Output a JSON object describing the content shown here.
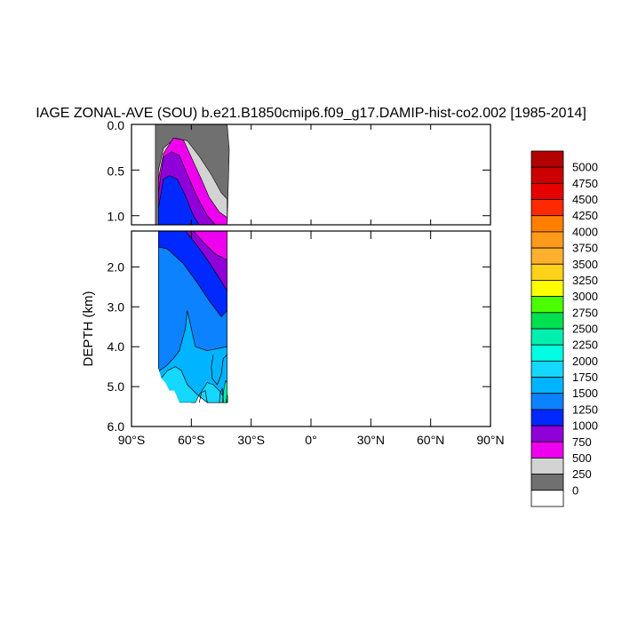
{
  "chart_data": {
    "type": "heatmap",
    "title": "IAGE ZONAL-AVE (SOU) b.e21.B1850cmip6.f09_g17.DAMIP-hist-co2.002 [1985-2014]",
    "ylabel": "DEPTH (km)",
    "xlabel": "",
    "x_ticks": [
      "90°S",
      "60°S",
      "30°S",
      "0°",
      "30°N",
      "60°N",
      "90°N"
    ],
    "x_tick_values": [
      -90,
      -60,
      -30,
      0,
      30,
      60,
      90
    ],
    "xlim": [
      -90,
      90
    ],
    "upper_panel": {
      "ylim": [
        0,
        1.1
      ],
      "y_ticks": [
        "0.0",
        "0.5",
        "1.0"
      ],
      "y_tick_values": [
        0,
        0.5,
        1.0
      ]
    },
    "lower_panel": {
      "ylim": [
        1.1,
        6.0
      ],
      "y_ticks": [
        "2.0",
        "3.0",
        "4.0",
        "5.0",
        "6.0"
      ],
      "y_tick_values": [
        2,
        3,
        4,
        5,
        6
      ]
    },
    "colorbar": {
      "labels": [
        "5000",
        "4750",
        "4500",
        "4250",
        "4000",
        "3750",
        "3500",
        "3250",
        "3000",
        "2750",
        "2500",
        "2250",
        "2000",
        "1750",
        "1500",
        "1250",
        "1000",
        "750",
        "500",
        "250",
        "0"
      ],
      "colors": [
        "#b30000",
        "#cc0000",
        "#e60000",
        "#ff2a00",
        "#ff7f00",
        "#ff9a1a",
        "#ffb02e",
        "#ffd21a",
        "#ffff00",
        "#4cff00",
        "#00e050",
        "#00f0b0",
        "#00ffe0",
        "#14d8ff",
        "#00b4ff",
        "#0c82ff",
        "#0028ff",
        "#9000d8",
        "#ee00ee",
        "#d3d3d3",
        "#707070",
        "#ffffff"
      ]
    },
    "fields": {
      "upper": [
        {
          "value": 250,
          "color": "#707070",
          "points": [
            [
              -78,
              0
            ],
            [
              -42,
              0
            ],
            [
              -41,
              0.28
            ],
            [
              -42,
              1.1
            ],
            [
              -78,
              1.1
            ]
          ]
        },
        {
          "value": 500,
          "color": "#d3d3d3",
          "points": [
            [
              -76.5,
              0.5
            ],
            [
              -74,
              0.26
            ],
            [
              -68,
              0.15
            ],
            [
              -62,
              0.18
            ],
            [
              -56,
              0.35
            ],
            [
              -50,
              0.55
            ],
            [
              -45,
              0.75
            ],
            [
              -42,
              0.82
            ],
            [
              -42,
              1.1
            ],
            [
              -76.5,
              1.1
            ]
          ]
        },
        {
          "value": 750,
          "color": "#ee00ee",
          "points": [
            [
              -76.5,
              0.6
            ],
            [
              -74,
              0.32
            ],
            [
              -69,
              0.15
            ],
            [
              -64,
              0.17
            ],
            [
              -60,
              0.36
            ],
            [
              -55,
              0.6
            ],
            [
              -51,
              0.8
            ],
            [
              -46,
              0.96
            ],
            [
              -42,
              1.02
            ],
            [
              -42,
              1.1
            ],
            [
              -76.5,
              1.1
            ]
          ]
        },
        {
          "value": 1000,
          "color": "#9000d8",
          "points": [
            [
              -76.5,
              0.75
            ],
            [
              -74,
              0.36
            ],
            [
              -70,
              0.3
            ],
            [
              -66,
              0.34
            ],
            [
              -62,
              0.55
            ],
            [
              -57,
              0.8
            ],
            [
              -52,
              1.0
            ],
            [
              -48,
              1.1
            ],
            [
              -76.5,
              1.1
            ]
          ]
        },
        {
          "value": 1250,
          "color": "#0028ff",
          "points": [
            [
              -76.5,
              0.92
            ],
            [
              -74,
              0.6
            ],
            [
              -71,
              0.56
            ],
            [
              -67,
              0.6
            ],
            [
              -63,
              0.78
            ],
            [
              -59,
              1.0
            ],
            [
              -56,
              1.1
            ],
            [
              -76.5,
              1.1
            ]
          ]
        }
      ],
      "lower": [
        {
          "value": 750,
          "color": "#ee00ee",
          "points": [
            [
              -59,
              1.1
            ],
            [
              -42,
              1.1
            ],
            [
              -42,
              1.83
            ],
            [
              -48,
              1.68
            ],
            [
              -54,
              1.38
            ]
          ]
        },
        {
          "value": 1000,
          "color": "#9000d8",
          "points": [
            [
              -63,
              1.1
            ],
            [
              -59,
              1.1
            ],
            [
              -54,
              1.38
            ],
            [
              -48,
              1.68
            ],
            [
              -42,
              1.83
            ],
            [
              -42,
              2.6
            ],
            [
              -47,
              2.2
            ],
            [
              -52,
              1.82
            ],
            [
              -58,
              1.4
            ]
          ]
        },
        {
          "value": 1250,
          "color": "#0028ff",
          "points": [
            [
              -76.5,
              1.1
            ],
            [
              -63,
              1.1
            ],
            [
              -58,
              1.4
            ],
            [
              -52,
              1.82
            ],
            [
              -47,
              2.2
            ],
            [
              -42,
              2.6
            ],
            [
              -42,
              3.1
            ],
            [
              -45,
              3.25
            ],
            [
              -51,
              2.85
            ],
            [
              -57,
              2.4
            ],
            [
              -64,
              1.92
            ],
            [
              -72,
              1.55
            ],
            [
              -76.5,
              1.5
            ]
          ]
        },
        {
          "value": 1500,
          "color": "#0c82ff",
          "points": [
            [
              -76.5,
              1.5
            ],
            [
              -72,
              1.55
            ],
            [
              -64,
              1.92
            ],
            [
              -57,
              2.4
            ],
            [
              -51,
              2.85
            ],
            [
              -45,
              3.25
            ],
            [
              -42,
              3.1
            ],
            [
              -42,
              4.0
            ],
            [
              -52,
              4.1
            ],
            [
              -58,
              4.0
            ],
            [
              -62,
              3.1
            ],
            [
              -63,
              3.55
            ],
            [
              -66,
              4.1
            ],
            [
              -69,
              4.3
            ],
            [
              -73,
              4.5
            ],
            [
              -76,
              4.6
            ],
            [
              -76.5,
              4.7
            ]
          ]
        },
        {
          "value": 1750,
          "color": "#00b4ff",
          "points": [
            [
              -76.5,
              4.7
            ],
            [
              -76,
              4.6
            ],
            [
              -73,
              4.5
            ],
            [
              -69,
              4.3
            ],
            [
              -66,
              4.1
            ],
            [
              -63,
              3.55
            ],
            [
              -62,
              3.1
            ],
            [
              -58,
              4.0
            ],
            [
              -52,
              4.1
            ],
            [
              -42,
              4.0
            ],
            [
              -42,
              5.4
            ],
            [
              -52,
              5.4
            ],
            [
              -57,
              5.2
            ],
            [
              -62,
              4.95
            ],
            [
              -65,
              4.6
            ],
            [
              -68,
              4.5
            ],
            [
              -72,
              4.6
            ],
            [
              -74.5,
              4.75
            ],
            [
              -76.5,
              4.85
            ]
          ]
        },
        {
          "value": 2000,
          "color": "#14d8ff",
          "points": [
            [
              -76.5,
              4.85
            ],
            [
              -74.5,
              4.75
            ],
            [
              -72,
              4.6
            ],
            [
              -68,
              4.5
            ],
            [
              -65,
              4.6
            ],
            [
              -62,
              4.95
            ],
            [
              -57,
              5.2
            ],
            [
              -52,
              5.4
            ],
            [
              -42,
              5.4
            ],
            [
              -42,
              5.33
            ],
            [
              -44,
              5.25
            ],
            [
              -46,
              5.1
            ],
            [
              -49,
              4.95
            ],
            [
              -52,
              4.9
            ],
            [
              -54,
              5.05
            ],
            [
              -56,
              5.2
            ],
            [
              -58,
              5.4
            ],
            [
              -70,
              5.4
            ],
            [
              -72,
              5.2
            ],
            [
              -74.5,
              5.0
            ],
            [
              -76.5,
              4.95
            ]
          ]
        },
        {
          "value": 2250,
          "color": "#00f0b0",
          "points": [
            [
              -44.5,
              5.4
            ],
            [
              -43.5,
              5.0
            ],
            [
              -42.8,
              4.85
            ],
            [
              -42,
              4.9
            ],
            [
              -42,
              5.4
            ]
          ]
        },
        {
          "value": 2500,
          "color": "#00e050",
          "points": [
            [
              -42.6,
              5.4
            ],
            [
              -42.1,
              5.2
            ],
            [
              -41.8,
              5.25
            ],
            [
              -42,
              5.4
            ]
          ]
        },
        {
          "value": 2750,
          "color": "#4cff00",
          "points": [
            [
              -42.2,
              5.4
            ],
            [
              -41.9,
              5.3
            ],
            [
              -41.8,
              5.4
            ]
          ]
        }
      ],
      "contours": [
        [
          [
            -49,
            4.2
          ],
          [
            -50,
            4.5
          ],
          [
            -49.5,
            4.8
          ],
          [
            -47,
            4.95
          ],
          [
            -45,
            4.7
          ],
          [
            -44,
            4.3
          ],
          [
            -42,
            4.2
          ]
        ],
        [
          [
            -56,
            5.4
          ],
          [
            -55,
            5.15
          ],
          [
            -53,
            5.1
          ],
          [
            -52,
            5.4
          ]
        ],
        [
          [
            -46,
            5.4
          ],
          [
            -45.5,
            5.15
          ],
          [
            -44.5,
            5.05
          ],
          [
            -43.8,
            5.4
          ]
        ]
      ],
      "missing_steps": [
        [
          -76.5,
          4.55
        ],
        [
          -75,
          4.8
        ],
        [
          -73,
          4.9
        ],
        [
          -71,
          5.1
        ],
        [
          -68.5,
          5.1
        ],
        [
          -66,
          5.4
        ],
        [
          -60,
          5.4
        ]
      ]
    }
  }
}
